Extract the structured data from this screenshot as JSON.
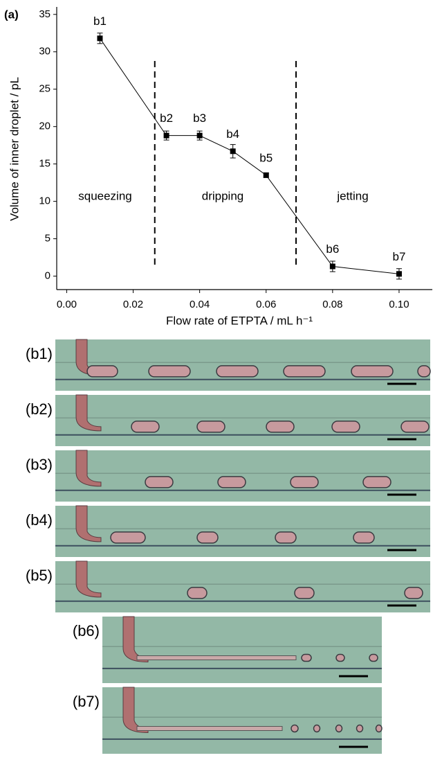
{
  "chart_data": {
    "type": "errorline",
    "panel_label": "(a)",
    "xlabel": "Flow rate of ETPTA / mL h⁻¹",
    "ylabel": "Volume of inner droplet / pL",
    "x": [
      0.01,
      0.03,
      0.04,
      0.05,
      0.06,
      0.08,
      0.1
    ],
    "values": [
      31.8,
      18.8,
      18.8,
      16.7,
      13.5,
      1.3,
      0.3
    ],
    "errors": [
      0.7,
      0.6,
      0.6,
      0.9,
      0.3,
      0.7,
      0.7
    ],
    "point_labels": [
      "b1",
      "b2",
      "b3",
      "b4",
      "b5",
      "b6",
      "b7"
    ],
    "color": "#000000",
    "dividers": [
      0.0265,
      0.069
    ],
    "annotations": [
      "squeezing",
      "dripping",
      "jetting"
    ],
    "xlim": [
      -0.003,
      0.11
    ],
    "xticks": [
      {
        "value": 0,
        "label": "0.00"
      },
      0.02,
      0.04,
      0.06,
      0.08,
      {
        "value": 0.1,
        "label": "0.10"
      }
    ],
    "ylim": [
      -1.8,
      36
    ],
    "yticks": [
      0,
      5,
      10,
      15,
      20,
      25,
      30,
      35
    ]
  },
  "images": [
    {
      "label": "(b1)"
    },
    {
      "label": "(b2)"
    },
    {
      "label": "(b3)"
    },
    {
      "label": "(b4)"
    },
    {
      "label": "(b5)"
    },
    {
      "label": "(b6)"
    },
    {
      "label": "(b7)"
    }
  ]
}
